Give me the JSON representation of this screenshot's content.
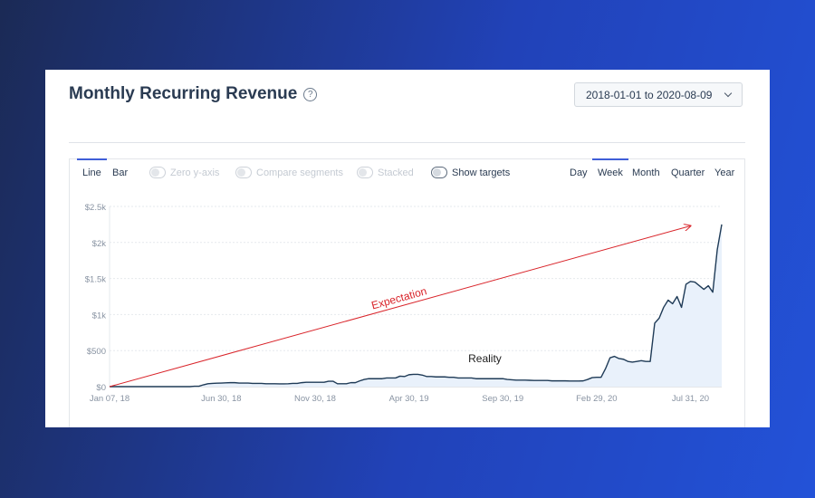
{
  "header": {
    "title": "Monthly Recurring Revenue",
    "help_icon": "help-circle-icon"
  },
  "date_range": {
    "label": "2018-01-01 to 2020-08-09",
    "icon": "chevron-down-icon"
  },
  "chart_types": [
    {
      "label": "Line",
      "active": true
    },
    {
      "label": "Bar",
      "active": false
    }
  ],
  "toggles": [
    {
      "label": "Zero y-axis",
      "enabled": false
    },
    {
      "label": "Compare segments",
      "enabled": false
    },
    {
      "label": "Stacked",
      "enabled": false
    },
    {
      "label": "Show targets",
      "enabled": true
    }
  ],
  "intervals": [
    {
      "label": "Day",
      "active": false
    },
    {
      "label": "Week",
      "active": true
    },
    {
      "label": "Month",
      "active": false
    },
    {
      "label": "Quarter",
      "active": false
    },
    {
      "label": "Year",
      "active": false
    }
  ],
  "chart_data": {
    "type": "area",
    "title": "Monthly Recurring Revenue",
    "ylim": [
      0,
      2500
    ],
    "y_ticks": [
      0,
      500,
      1000,
      1500,
      2000,
      2500
    ],
    "y_tick_labels": [
      "$0",
      "$500",
      "$1k",
      "$1.5k",
      "$2k",
      "$2.5k"
    ],
    "x_tick_labels": [
      "Jan 07, 18",
      "Jun 30, 18",
      "Nov 30, 18",
      "Apr 30, 19",
      "Sep 30, 19",
      "Feb 29, 20",
      "Jul 31, 20"
    ],
    "x_tick_positions": [
      0,
      25,
      46,
      67,
      88,
      109,
      130
    ],
    "grid": true,
    "series": [
      {
        "values": [
          0,
          0,
          0,
          0,
          0,
          0,
          0,
          0,
          0,
          0,
          0,
          0,
          0,
          0,
          0,
          0,
          0,
          0,
          0,
          5,
          5,
          25,
          40,
          45,
          48,
          50,
          52,
          55,
          55,
          50,
          50,
          50,
          45,
          45,
          45,
          40,
          40,
          40,
          38,
          38,
          40,
          45,
          45,
          55,
          60,
          60,
          60,
          60,
          60,
          75,
          75,
          40,
          40,
          40,
          55,
          55,
          80,
          100,
          110,
          110,
          110,
          110,
          120,
          120,
          120,
          145,
          140,
          165,
          170,
          170,
          160,
          140,
          140,
          135,
          135,
          135,
          130,
          130,
          120,
          120,
          120,
          120,
          110,
          110,
          110,
          110,
          110,
          110,
          110,
          100,
          95,
          90,
          90,
          90,
          88,
          85,
          85,
          85,
          85,
          80,
          80,
          80,
          80,
          78,
          78,
          78,
          80,
          100,
          125,
          130,
          130,
          250,
          400,
          420,
          390,
          380,
          350,
          340,
          350,
          360,
          350,
          350,
          880,
          950,
          1100,
          1200,
          1150,
          1250,
          1100,
          1420,
          1460,
          1450,
          1400,
          1350,
          1400,
          1310,
          1900,
          2250
        ]
      }
    ],
    "annotations": [
      {
        "text": "Expectation",
        "from": [
          0,
          0
        ],
        "to": [
          130,
          2230
        ],
        "color": "#d9242a"
      },
      {
        "text": "Reality",
        "x": 84,
        "y": 340
      }
    ]
  }
}
